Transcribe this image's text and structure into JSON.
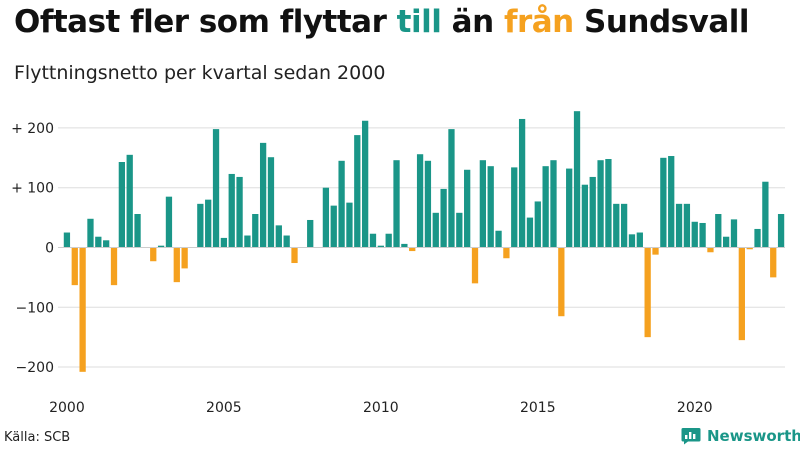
{
  "title": {
    "pre": "Oftast fler som flyttar ",
    "pos": "till",
    "mid": " än ",
    "neg": "från",
    "post": " Sundsvall"
  },
  "subtitle": "Flyttningsnetto per kvartal sedan 2000",
  "source": "Källa: SCB",
  "brand": {
    "name": "Newsworthy"
  },
  "colors": {
    "positive": "#1a9688",
    "negative": "#f5a11f",
    "grid": "#dddddd",
    "text": "#222222"
  },
  "chart_data": {
    "type": "bar",
    "period": "quarter",
    "x_start": "2000 Q1",
    "values": [
      25,
      -63,
      -208,
      48,
      18,
      12,
      -63,
      143,
      155,
      56,
      0,
      -23,
      3,
      85,
      -58,
      -35,
      0,
      73,
      80,
      198,
      16,
      123,
      118,
      20,
      56,
      175,
      151,
      37,
      20,
      -26,
      0,
      46,
      0,
      100,
      70,
      145,
      75,
      188,
      212,
      23,
      3,
      23,
      146,
      6,
      -6,
      156,
      145,
      58,
      98,
      198,
      58,
      130,
      -60,
      146,
      136,
      28,
      -18,
      134,
      215,
      50,
      77,
      136,
      146,
      -115,
      132,
      228,
      105,
      118,
      146,
      148,
      73,
      73,
      22,
      25,
      -150,
      -12,
      150,
      153,
      73,
      73,
      43,
      41,
      -8,
      56,
      18,
      47,
      -155,
      -3,
      31,
      110,
      -50,
      56
    ],
    "y_ticks": [
      {
        "value": 200,
        "label": "+ 200"
      },
      {
        "value": 100,
        "label": "+ 100"
      },
      {
        "value": 0,
        "label": "0"
      },
      {
        "value": -100,
        "label": "−100"
      },
      {
        "value": -200,
        "label": "−200"
      }
    ],
    "ylim": [
      -215,
      235
    ],
    "x_ticks": [
      {
        "year": 2000,
        "label": "2000"
      },
      {
        "year": 2005,
        "label": "2005"
      },
      {
        "year": 2010,
        "label": "2010"
      },
      {
        "year": 2015,
        "label": "2015"
      },
      {
        "year": 2020,
        "label": "2020"
      }
    ],
    "grid": true,
    "legend": "none"
  }
}
